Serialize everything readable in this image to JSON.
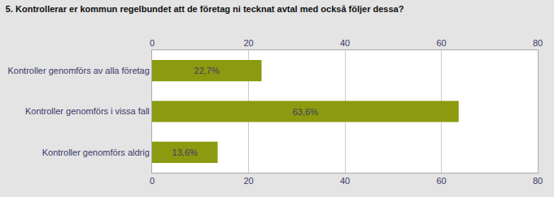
{
  "chart_data": {
    "type": "bar",
    "orientation": "horizontal",
    "title": "5. Kontrollerar er kommun regelbundet att de företag ni tecknat avtal med också följer dessa?",
    "categories": [
      "Kontroller genomförs aldrig",
      "Kontroller genomförs i vissa fall",
      "Kontroller genomförs av alla företag"
    ],
    "values": [
      13.6,
      63.6,
      22.7
    ],
    "value_labels": [
      "13,6%",
      "63,6%",
      "22,7%"
    ],
    "data_labels": true,
    "color": "#8B9A0E",
    "xlim": [
      0,
      80
    ],
    "xticks": [
      0,
      20,
      40,
      60,
      80
    ],
    "grid": true
  }
}
